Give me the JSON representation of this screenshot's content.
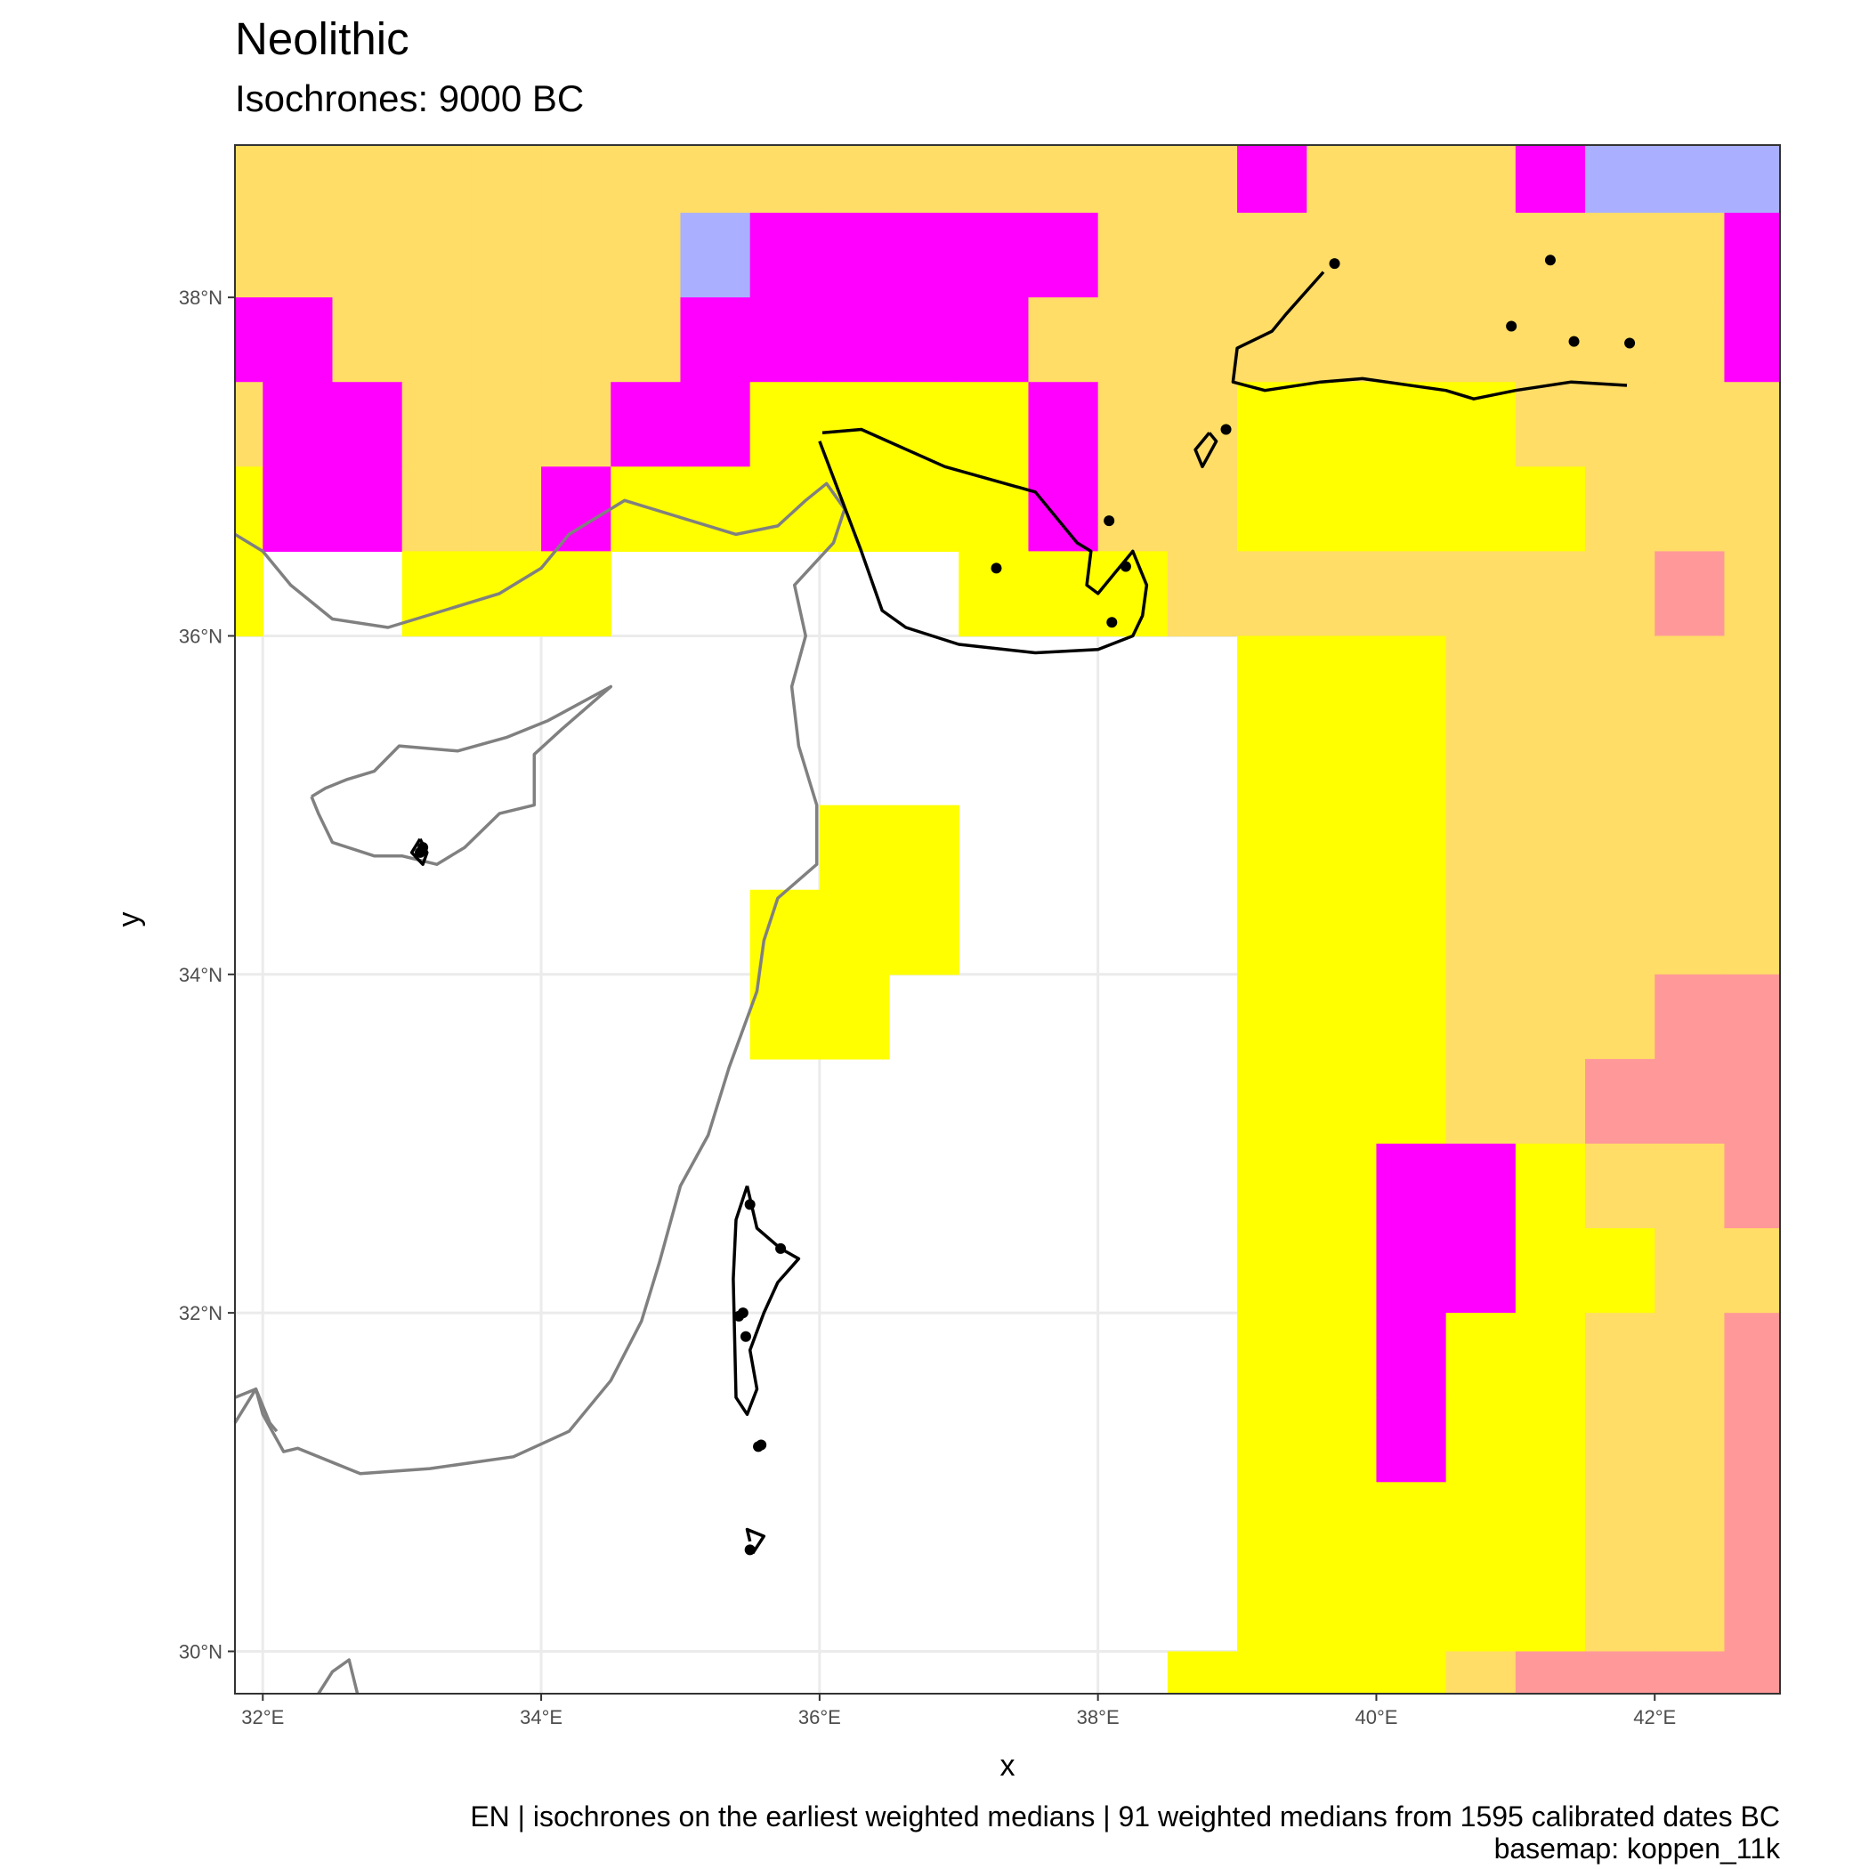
{
  "title": "Neolithic",
  "subtitle": "Isochrones: 9000 BC",
  "caption_line1": "EN | isochrones on the earliest weighted medians | 91 weighted medians from 1595 calibrated dates BC",
  "caption_line2": "basemap: koppen_11k",
  "chart_data": {
    "type": "heatmap",
    "xlabel": "x",
    "ylabel": "y",
    "xlim": [
      31.8,
      42.9
    ],
    "ylim": [
      29.75,
      38.9
    ],
    "x_ticks": [
      {
        "value": 32,
        "label": "32°E"
      },
      {
        "value": 34,
        "label": "34°E"
      },
      {
        "value": 36,
        "label": "36°E"
      },
      {
        "value": 38,
        "label": "38°E"
      },
      {
        "value": 40,
        "label": "40°E"
      },
      {
        "value": 42,
        "label": "42°E"
      }
    ],
    "y_ticks": [
      {
        "value": 30,
        "label": "30°N"
      },
      {
        "value": 32,
        "label": "32°N"
      },
      {
        "value": 34,
        "label": "34°N"
      },
      {
        "value": 36,
        "label": "36°N"
      },
      {
        "value": 38,
        "label": "38°N"
      }
    ],
    "grid": true,
    "grid_lon0": 31.5,
    "grid_lat0": 38.5,
    "cell_deg": 0.5,
    "legend": {
      "Y": "#ffdd66",
      "M": "#ff00ff",
      "D": "#cc00cc",
      "B": "#aab0ff",
      "W": "#ffff00",
      "P": "#ff9999",
      "R": "#ff0000",
      "O": "#f2a600",
      "_": "none"
    },
    "grid_rows": [
      "YYYYYYYYYYYYYYYMYYYMBBBBB",
      "YYYYYYYBMMMMMYYYYYYYYYMMB",
      "MMYYYYYMMMMMYYYYYYYYYYMMM",
      "YMMYYYMMWWWWMYYWWWWYYYYYY",
      "WMMYYMWWWWWWMYYWWWWWYYYYY",
      "W__WWW_____WWWYYYYYYYPYWWO",
      "_______________WWWYYYYYYOOO",
      "_______________WWWYYYYYYRROO",
      "_________WW____WWWYYYYYYRROO",
      "________WWW____WWWYYYYYYYYRROO",
      "________WW_____WWWYYYPPPRRROO",
      "_______________WWWYYPPPPPRRRR",
      "_______________WWMMWYYPPPPPRRR",
      "_______________WWMMWWYYPPPPPPPRR",
      "_______________WWMWWYYPPPPPPPRR",
      "_______________WWMWWYYPPPPPPPRR",
      "_______________WWWWWYYPPPPPPPRR",
      "_______________WWWWWYYPPPPPPRRR",
      "______________WWWWYPPPPPPPRRRR",
      "______________WWWWYPPPPPPPRRRR",
      "_______________WWWWYPPPPPPRRRR",
      "_______________WWWWYPPPPPPRRRR",
      "______________WWWWYPPPPPRRRRRR",
      "______________WWYYPPPPPRRRRRRR",
      "_____________WWWYYPPPPPRRRRRRR",
      "_____________WWWYPPPPPPRRRRRRR",
      "_____________WWWYPPPPPPRRRRRRRR",
      "_____________WWWYPPPPPPRRRRRRRR"
    ],
    "sites": [
      [
        39.7,
        38.2
      ],
      [
        41.25,
        38.22
      ],
      [
        40.97,
        37.83
      ],
      [
        41.42,
        37.74
      ],
      [
        41.82,
        37.73
      ],
      [
        38.92,
        37.22
      ],
      [
        38.08,
        36.68
      ],
      [
        37.27,
        36.4
      ],
      [
        38.2,
        36.41
      ],
      [
        38.1,
        36.08
      ],
      [
        33.13,
        34.72
      ],
      [
        33.15,
        34.75
      ],
      [
        35.5,
        32.64
      ],
      [
        35.72,
        32.38
      ],
      [
        35.42,
        31.98
      ],
      [
        35.45,
        32.0
      ],
      [
        35.47,
        31.86
      ],
      [
        35.58,
        31.22
      ],
      [
        35.56,
        31.21
      ],
      [
        35.5,
        30.6
      ]
    ],
    "isochrones": [
      [
        [
          39.62,
          38.15
        ],
        [
          39.35,
          37.9
        ],
        [
          39.25,
          37.8
        ],
        [
          39.0,
          37.7
        ],
        [
          38.97,
          37.5
        ],
        [
          39.2,
          37.45
        ],
        [
          39.6,
          37.5
        ],
        [
          39.9,
          37.52
        ],
        [
          40.5,
          37.45
        ],
        [
          40.7,
          37.4
        ],
        [
          41.0,
          37.45
        ],
        [
          41.4,
          37.5
        ],
        [
          41.8,
          37.48
        ]
      ],
      [
        [
          36.02,
          37.2
        ],
        [
          36.3,
          37.22
        ],
        [
          36.9,
          37.0
        ],
        [
          37.55,
          36.85
        ],
        [
          37.85,
          36.55
        ],
        [
          37.95,
          36.5
        ],
        [
          37.92,
          36.3
        ],
        [
          38.0,
          36.25
        ],
        [
          38.15,
          36.4
        ],
        [
          38.25,
          36.5
        ],
        [
          38.35,
          36.3
        ],
        [
          38.32,
          36.12
        ],
        [
          38.25,
          36.0
        ],
        [
          38.0,
          35.92
        ],
        [
          37.55,
          35.9
        ],
        [
          37.0,
          35.95
        ],
        [
          36.62,
          36.05
        ],
        [
          36.45,
          36.15
        ],
        [
          36.3,
          36.5
        ],
        [
          36.0,
          37.15
        ]
      ],
      [
        [
          38.8,
          37.2
        ],
        [
          38.7,
          37.1
        ],
        [
          38.75,
          37.0
        ],
        [
          38.85,
          37.15
        ],
        [
          38.8,
          37.2
        ]
      ],
      [
        [
          33.13,
          34.8
        ],
        [
          33.07,
          34.72
        ],
        [
          33.15,
          34.65
        ],
        [
          33.18,
          34.72
        ],
        [
          33.13,
          34.8
        ]
      ],
      [
        [
          35.48,
          32.75
        ],
        [
          35.55,
          32.5
        ],
        [
          35.72,
          32.38
        ],
        [
          35.85,
          32.32
        ],
        [
          35.7,
          32.18
        ],
        [
          35.6,
          32.0
        ],
        [
          35.5,
          31.78
        ],
        [
          35.55,
          31.55
        ],
        [
          35.48,
          31.4
        ],
        [
          35.4,
          31.5
        ],
        [
          35.38,
          32.2
        ],
        [
          35.4,
          32.55
        ],
        [
          35.48,
          32.75
        ]
      ],
      [
        [
          35.5,
          30.65
        ],
        [
          35.48,
          30.72
        ],
        [
          35.6,
          30.68
        ],
        [
          35.52,
          30.58
        ]
      ]
    ],
    "coastlines": [
      [
        [
          31.8,
          36.6
        ],
        [
          32.0,
          36.5
        ],
        [
          32.2,
          36.3
        ],
        [
          32.5,
          36.1
        ],
        [
          32.9,
          36.05
        ],
        [
          33.3,
          36.15
        ],
        [
          33.7,
          36.25
        ],
        [
          34.0,
          36.4
        ],
        [
          34.2,
          36.6
        ],
        [
          34.6,
          36.8
        ],
        [
          35.0,
          36.7
        ],
        [
          35.4,
          36.6
        ],
        [
          35.7,
          36.65
        ],
        [
          35.9,
          36.8
        ],
        [
          36.05,
          36.9
        ],
        [
          36.18,
          36.75
        ],
        [
          36.1,
          36.55
        ],
        [
          35.82,
          36.3
        ],
        [
          35.9,
          36.0
        ],
        [
          35.8,
          35.7
        ],
        [
          35.85,
          35.35
        ],
        [
          35.98,
          35.0
        ],
        [
          35.98,
          34.65
        ],
        [
          35.7,
          34.45
        ],
        [
          35.6,
          34.2
        ],
        [
          35.55,
          33.9
        ],
        [
          35.35,
          33.45
        ],
        [
          35.2,
          33.05
        ],
        [
          35.0,
          32.75
        ],
        [
          34.85,
          32.3
        ],
        [
          34.72,
          31.95
        ],
        [
          34.5,
          31.6
        ],
        [
          34.2,
          31.3
        ],
        [
          33.8,
          31.15
        ],
        [
          33.2,
          31.08
        ],
        [
          32.7,
          31.05
        ],
        [
          32.25,
          31.2
        ],
        [
          32.15,
          31.18
        ],
        [
          32.0,
          31.4
        ],
        [
          31.95,
          31.55
        ],
        [
          31.8,
          31.5
        ]
      ],
      [
        [
          32.35,
          35.05
        ],
        [
          32.45,
          35.1
        ],
        [
          32.6,
          35.15
        ],
        [
          32.8,
          35.2
        ],
        [
          32.98,
          35.35
        ],
        [
          33.4,
          35.32
        ],
        [
          33.75,
          35.4
        ],
        [
          34.05,
          35.5
        ],
        [
          34.5,
          35.7
        ],
        [
          34.15,
          35.45
        ],
        [
          33.95,
          35.3
        ],
        [
          33.95,
          35.0
        ],
        [
          33.7,
          34.95
        ],
        [
          33.45,
          34.75
        ],
        [
          33.25,
          34.65
        ],
        [
          33.0,
          34.7
        ],
        [
          32.8,
          34.7
        ],
        [
          32.5,
          34.78
        ],
        [
          32.4,
          34.95
        ],
        [
          32.35,
          35.05
        ]
      ],
      [
        [
          31.8,
          31.35
        ],
        [
          31.95,
          31.55
        ],
        [
          32.05,
          31.35
        ],
        [
          32.1,
          31.3
        ]
      ],
      [
        [
          32.4,
          29.75
        ],
        [
          32.5,
          29.88
        ],
        [
          32.62,
          29.95
        ],
        [
          32.65,
          29.85
        ],
        [
          32.68,
          29.75
        ]
      ]
    ]
  }
}
